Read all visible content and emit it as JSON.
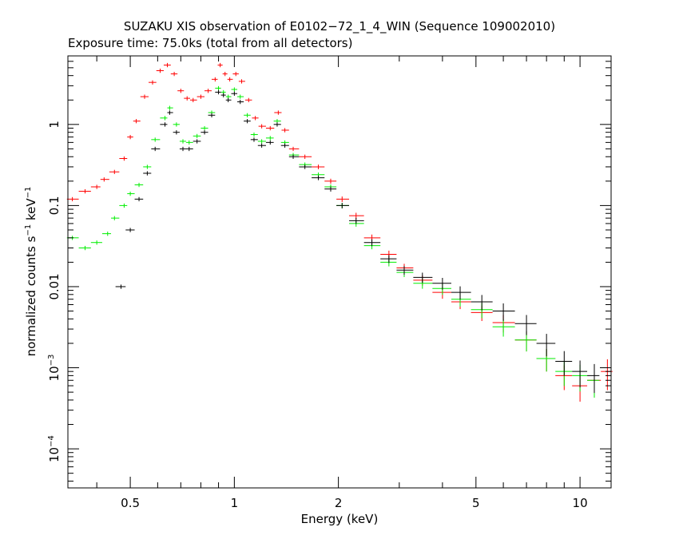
{
  "chart_data": {
    "type": "scatter",
    "title": "SUZAKU XIS observation of E0102−72_1_4_WIN (Sequence 109002010)",
    "subtitle": "Exposure time: 75.0ks (total from all detectors)",
    "xlabel": "Energy (keV)",
    "ylabel_main": "normalized counts s",
    "ylabel_sup1": "−1",
    "ylabel_mid": " keV",
    "ylabel_sup2": "−1",
    "x_scale": "log",
    "y_scale": "log",
    "xlim": [
      0.33,
      12.3
    ],
    "ylim": [
      3.3e-05,
      7.0
    ],
    "x_ticks": [
      {
        "v": 0.5,
        "label": "0.5"
      },
      {
        "v": 1,
        "label": "1"
      },
      {
        "v": 2,
        "label": "2"
      },
      {
        "v": 5,
        "label": "5"
      },
      {
        "v": 10,
        "label": "10"
      }
    ],
    "y_ticks": [
      {
        "v": 1,
        "label": "1"
      },
      {
        "v": 0.1,
        "label": "0.1"
      },
      {
        "v": 0.01,
        "label": "0.01"
      },
      {
        "v": 0.001,
        "base": "10",
        "exp": "−3"
      },
      {
        "v": 0.0001,
        "base": "10",
        "exp": "−4"
      }
    ],
    "series": [
      {
        "color": "#ff0000",
        "points": [
          [
            0.34,
            0.12
          ],
          [
            0.37,
            0.15
          ],
          [
            0.4,
            0.17
          ],
          [
            0.42,
            0.21
          ],
          [
            0.45,
            0.26
          ],
          [
            0.48,
            0.38
          ],
          [
            0.5,
            0.7
          ],
          [
            0.52,
            1.1
          ],
          [
            0.55,
            2.2
          ],
          [
            0.58,
            3.3
          ],
          [
            0.61,
            4.6
          ],
          [
            0.64,
            5.4
          ],
          [
            0.67,
            4.2
          ],
          [
            0.7,
            2.6
          ],
          [
            0.73,
            2.1
          ],
          [
            0.76,
            2.0
          ],
          [
            0.8,
            2.2
          ],
          [
            0.84,
            2.6
          ],
          [
            0.88,
            3.6
          ],
          [
            0.91,
            5.4
          ],
          [
            0.94,
            4.2
          ],
          [
            0.97,
            3.6
          ],
          [
            1.01,
            4.2
          ],
          [
            1.05,
            3.4
          ],
          [
            1.1,
            2.0
          ],
          [
            1.15,
            1.2
          ],
          [
            1.2,
            0.95
          ],
          [
            1.27,
            0.9
          ],
          [
            1.34,
            1.4
          ],
          [
            1.4,
            0.85
          ],
          [
            1.48,
            0.5
          ],
          [
            1.6,
            0.4
          ],
          [
            1.75,
            0.3
          ],
          [
            1.9,
            0.2
          ],
          [
            2.05,
            0.12
          ],
          [
            2.25,
            0.075
          ],
          [
            2.5,
            0.04
          ],
          [
            2.8,
            0.025
          ],
          [
            3.1,
            0.017
          ],
          [
            3.5,
            0.012
          ],
          [
            4.0,
            0.0085
          ],
          [
            4.5,
            0.0065
          ],
          [
            5.2,
            0.0048
          ],
          [
            6.0,
            0.0036
          ],
          [
            7.0,
            0.0022
          ],
          [
            8.0,
            0.0013
          ],
          [
            9.0,
            0.0008
          ],
          [
            10.0,
            0.0006
          ],
          [
            11.0,
            0.0007
          ],
          [
            12.0,
            0.0009
          ]
        ]
      },
      {
        "color": "#00ee00",
        "points": [
          [
            0.34,
            0.04
          ],
          [
            0.37,
            0.03
          ],
          [
            0.4,
            0.035
          ],
          [
            0.43,
            0.045
          ],
          [
            0.45,
            0.07
          ],
          [
            0.48,
            0.1
          ],
          [
            0.5,
            0.14
          ],
          [
            0.53,
            0.18
          ],
          [
            0.56,
            0.3
          ],
          [
            0.59,
            0.65
          ],
          [
            0.63,
            1.2
          ],
          [
            0.65,
            1.6
          ],
          [
            0.68,
            1.0
          ],
          [
            0.71,
            0.62
          ],
          [
            0.74,
            0.6
          ],
          [
            0.78,
            0.72
          ],
          [
            0.82,
            0.9
          ],
          [
            0.86,
            1.4
          ],
          [
            0.9,
            2.8
          ],
          [
            0.93,
            2.5
          ],
          [
            0.96,
            2.2
          ],
          [
            1.0,
            2.7
          ],
          [
            1.04,
            2.2
          ],
          [
            1.09,
            1.3
          ],
          [
            1.14,
            0.75
          ],
          [
            1.2,
            0.62
          ],
          [
            1.27,
            0.68
          ],
          [
            1.33,
            1.1
          ],
          [
            1.4,
            0.6
          ],
          [
            1.48,
            0.42
          ],
          [
            1.6,
            0.32
          ],
          [
            1.75,
            0.24
          ],
          [
            1.9,
            0.17
          ],
          [
            2.05,
            0.1
          ],
          [
            2.25,
            0.06
          ],
          [
            2.5,
            0.032
          ],
          [
            2.8,
            0.02
          ],
          [
            3.1,
            0.015
          ],
          [
            3.5,
            0.011
          ],
          [
            4.0,
            0.0095
          ],
          [
            4.5,
            0.007
          ],
          [
            5.2,
            0.0052
          ],
          [
            6.0,
            0.0032
          ],
          [
            7.0,
            0.0022
          ],
          [
            8.0,
            0.0013
          ],
          [
            9.0,
            0.0009
          ],
          [
            10.0,
            0.0008
          ],
          [
            11.0,
            0.0007
          ]
        ]
      },
      {
        "color": "#000000",
        "points": [
          [
            0.47,
            0.01
          ],
          [
            0.5,
            0.05
          ],
          [
            0.53,
            0.12
          ],
          [
            0.56,
            0.25
          ],
          [
            0.59,
            0.5
          ],
          [
            0.63,
            1.0
          ],
          [
            0.65,
            1.4
          ],
          [
            0.68,
            0.8
          ],
          [
            0.71,
            0.5
          ],
          [
            0.74,
            0.5
          ],
          [
            0.78,
            0.62
          ],
          [
            0.82,
            0.8
          ],
          [
            0.86,
            1.3
          ],
          [
            0.9,
            2.5
          ],
          [
            0.93,
            2.3
          ],
          [
            0.96,
            2.0
          ],
          [
            1.0,
            2.4
          ],
          [
            1.04,
            1.9
          ],
          [
            1.09,
            1.1
          ],
          [
            1.14,
            0.65
          ],
          [
            1.2,
            0.55
          ],
          [
            1.27,
            0.6
          ],
          [
            1.33,
            1.0
          ],
          [
            1.4,
            0.55
          ],
          [
            1.48,
            0.4
          ],
          [
            1.6,
            0.3
          ],
          [
            1.75,
            0.22
          ],
          [
            1.9,
            0.16
          ],
          [
            2.05,
            0.1
          ],
          [
            2.25,
            0.065
          ],
          [
            2.5,
            0.035
          ],
          [
            2.8,
            0.022
          ],
          [
            3.1,
            0.016
          ],
          [
            3.5,
            0.013
          ],
          [
            4.0,
            0.011
          ],
          [
            4.5,
            0.0085
          ],
          [
            5.2,
            0.0065
          ],
          [
            6.0,
            0.005
          ],
          [
            7.0,
            0.0035
          ],
          [
            8.0,
            0.002
          ],
          [
            9.0,
            0.0012
          ],
          [
            10.0,
            0.0009
          ],
          [
            11.0,
            0.0008
          ]
        ]
      }
    ]
  }
}
